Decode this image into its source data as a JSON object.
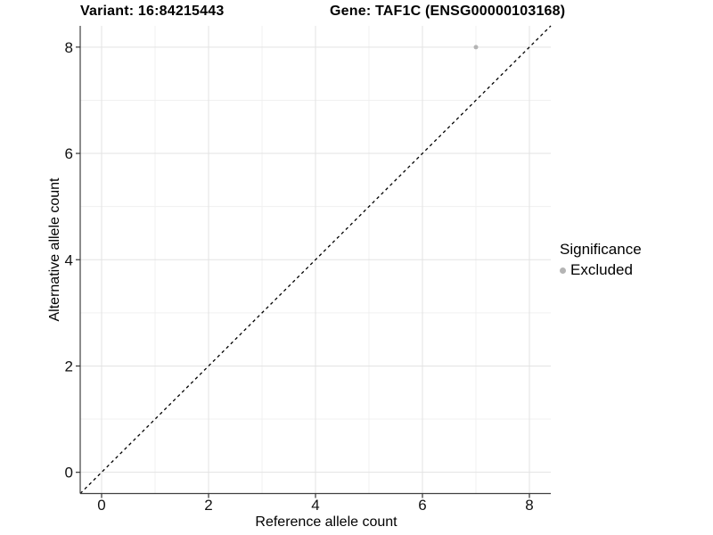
{
  "chart_data": {
    "type": "scatter",
    "titles": {
      "left": "Variant: 16:84215443",
      "right": "Gene: TAF1C (ENSG00000103168)"
    },
    "xlabel": "Reference allele count",
    "ylabel": "Alternative allele count",
    "xlim": [
      -0.4,
      8.4
    ],
    "ylim": [
      -0.4,
      8.4
    ],
    "x_ticks": [
      0,
      2,
      4,
      6,
      8
    ],
    "y_ticks": [
      0,
      2,
      4,
      6,
      8
    ],
    "x_minor": [
      1,
      3,
      5,
      7
    ],
    "y_minor": [
      1,
      3,
      5,
      7
    ],
    "grid": "on",
    "reference_line": {
      "kind": "y=x identity",
      "style": "dashed",
      "color": "#000000"
    },
    "series": [
      {
        "name": "Excluded",
        "color": "#b4b4b4",
        "points": [
          [
            7,
            8
          ]
        ],
        "point_radius": 2.5
      }
    ],
    "legend": {
      "title": "Significance",
      "position": "right",
      "entries": [
        {
          "label": "Excluded",
          "color": "#b4b4b4"
        }
      ]
    },
    "colors": {
      "grid_major": "#e3e3e3",
      "grid_minor": "#f0f0f0",
      "axis_line": "#404040",
      "tick": "#333333",
      "tick_label": "#111111"
    }
  }
}
